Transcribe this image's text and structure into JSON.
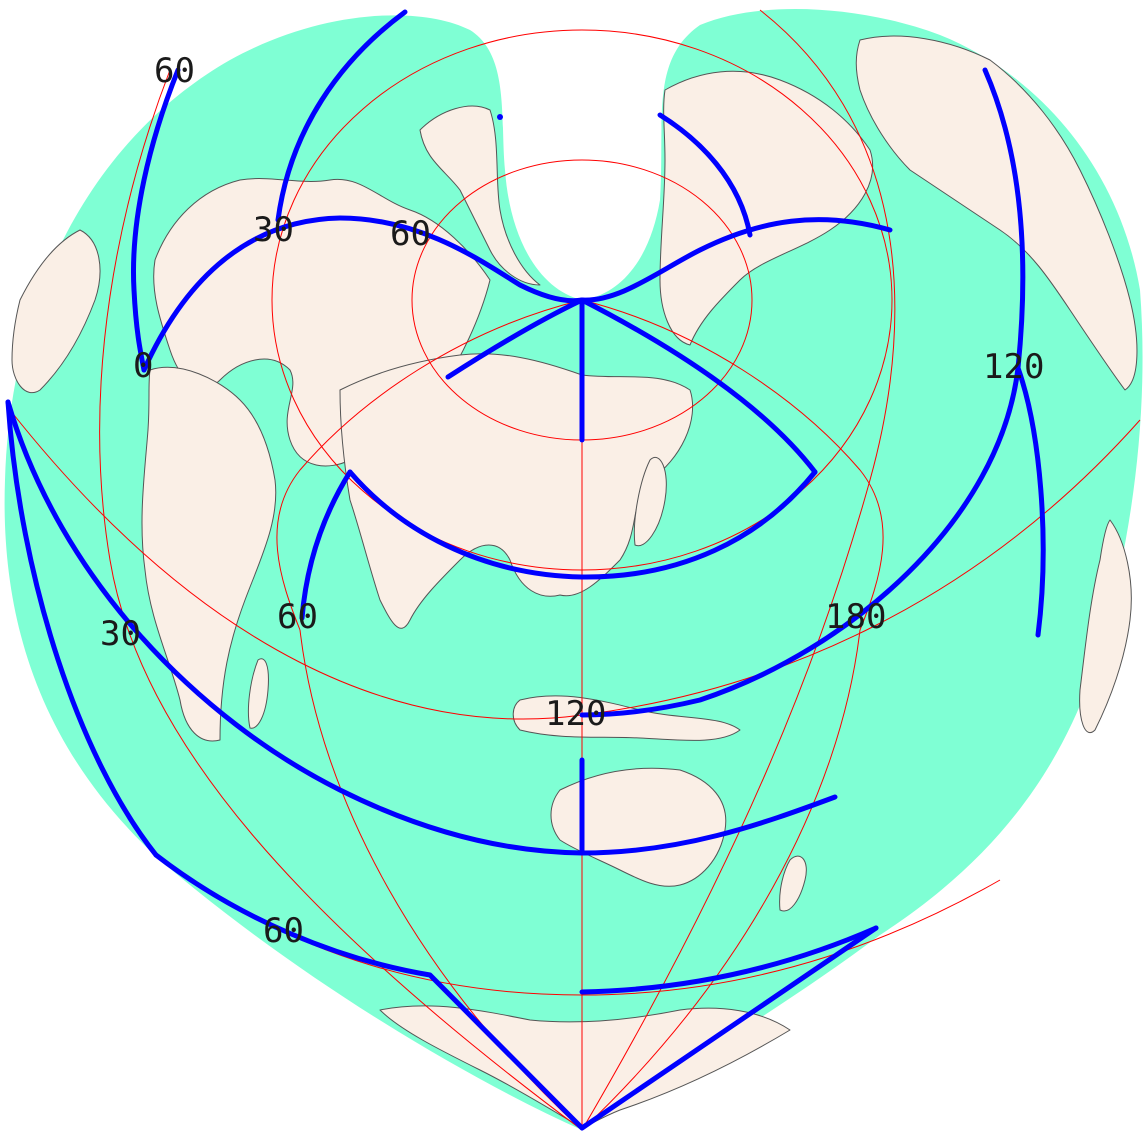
{
  "colors": {
    "ocean": "#7fffd4",
    "land": "#faefe6",
    "coastline": "#555555",
    "graticule": "#ff0000",
    "interruption_lines": "#0000ff",
    "label_text": "#1a1a1a"
  },
  "map": {
    "labels": {
      "lat_60_top_left": "60",
      "lon_30_upper": "30",
      "lat_60_upper": "60",
      "lon_0": "0",
      "lon_120_right": "120",
      "lat_30_left": "30",
      "lat_60_mid": "60",
      "lon_180": "180",
      "lon_120_center": "120",
      "lat_60_lower": "60"
    }
  }
}
